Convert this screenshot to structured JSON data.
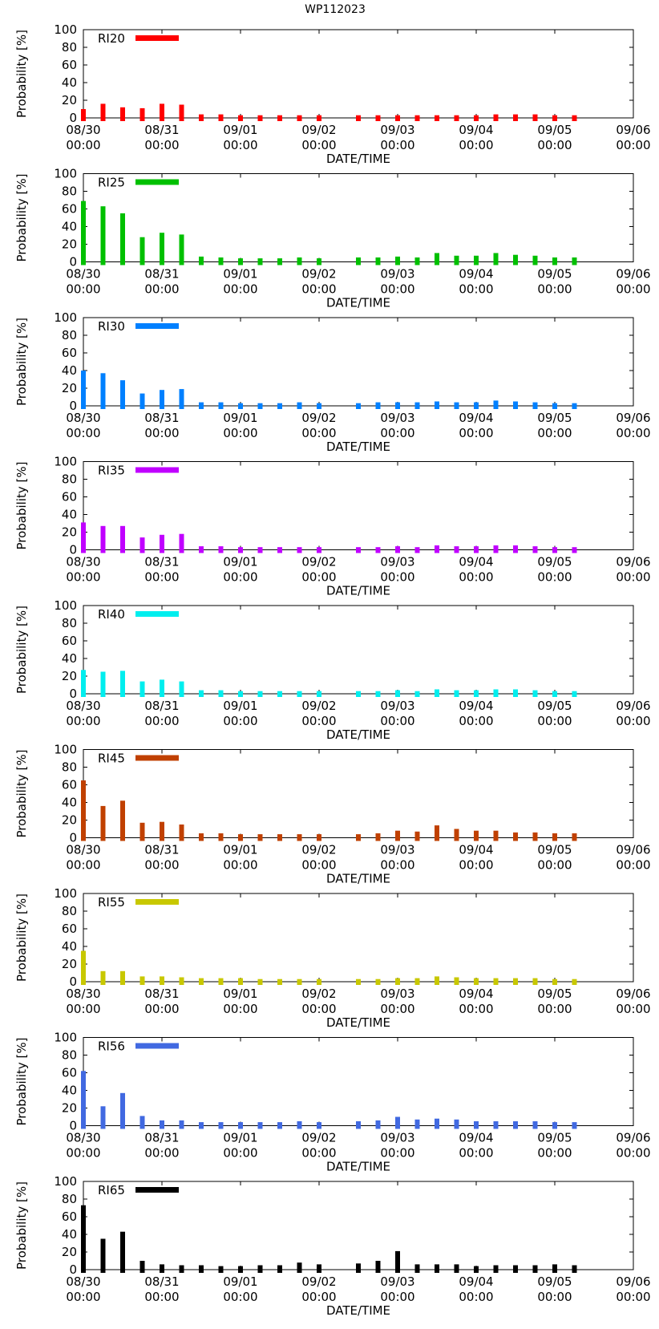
{
  "figure_title": "WP112023",
  "chart_data": [
    {
      "type": "bar",
      "title": "WP112023",
      "legend": "RI20",
      "color": "#ff0000",
      "ylabel": "Probability [%]",
      "xlabel": "DATE/TIME",
      "ylim": [
        0,
        100
      ],
      "yticks": [
        0,
        20,
        40,
        60,
        80,
        100
      ],
      "xticks": [
        "08/30\n00:00",
        "08/31\n00:00",
        "09/01\n00:00",
        "09/02\n00:00",
        "09/03\n00:00",
        "09/04\n00:00",
        "09/05\n00:00",
        "09/06\n00:00"
      ],
      "x_hours": [
        0,
        6,
        12,
        18,
        24,
        30,
        36,
        42,
        48,
        54,
        60,
        66,
        72,
        84,
        90,
        96,
        102,
        108,
        114,
        120,
        126,
        132,
        138,
        144,
        150
      ],
      "values": [
        10,
        16,
        12,
        11,
        16,
        15,
        4,
        4,
        3,
        3,
        3,
        3,
        3,
        3,
        3,
        3,
        3,
        3,
        3,
        3,
        4,
        4,
        4,
        3,
        3
      ]
    },
    {
      "type": "bar",
      "title": "WP112023",
      "legend": "RI25",
      "color": "#00c000",
      "ylabel": "Probability [%]",
      "xlabel": "DATE/TIME",
      "ylim": [
        0,
        100
      ],
      "yticks": [
        0,
        20,
        40,
        60,
        80,
        100
      ],
      "xticks": [
        "08/30\n00:00",
        "08/31\n00:00",
        "09/01\n00:00",
        "09/02\n00:00",
        "09/03\n00:00",
        "09/04\n00:00",
        "09/05\n00:00",
        "09/06\n00:00"
      ],
      "x_hours": [
        0,
        6,
        12,
        18,
        24,
        30,
        36,
        42,
        48,
        54,
        60,
        66,
        72,
        84,
        90,
        96,
        102,
        108,
        114,
        120,
        126,
        132,
        138,
        144,
        150
      ],
      "values": [
        69,
        63,
        55,
        28,
        33,
        31,
        6,
        5,
        4,
        4,
        4,
        5,
        4,
        5,
        5,
        6,
        5,
        10,
        7,
        7,
        10,
        8,
        7,
        5,
        5
      ]
    },
    {
      "type": "bar",
      "title": "WP112023",
      "legend": "RI30",
      "color": "#0080ff",
      "ylabel": "Probability [%]",
      "xlabel": "DATE/TIME",
      "ylim": [
        0,
        100
      ],
      "yticks": [
        0,
        20,
        40,
        60,
        80,
        100
      ],
      "xticks": [
        "08/30\n00:00",
        "08/31\n00:00",
        "09/01\n00:00",
        "09/02\n00:00",
        "09/03\n00:00",
        "09/04\n00:00",
        "09/05\n00:00",
        "09/06\n00:00"
      ],
      "x_hours": [
        0,
        6,
        12,
        18,
        24,
        30,
        36,
        42,
        48,
        54,
        60,
        66,
        72,
        84,
        90,
        96,
        102,
        108,
        114,
        120,
        126,
        132,
        138,
        144,
        150
      ],
      "values": [
        40,
        37,
        29,
        14,
        18,
        19,
        4,
        4,
        3,
        3,
        3,
        4,
        3,
        3,
        4,
        4,
        4,
        5,
        4,
        4,
        6,
        5,
        4,
        3,
        3
      ]
    },
    {
      "type": "bar",
      "title": "WP112023",
      "legend": "RI35",
      "color": "#c000ff",
      "ylabel": "Probability [%]",
      "xlabel": "DATE/TIME",
      "ylim": [
        0,
        100
      ],
      "yticks": [
        0,
        20,
        40,
        60,
        80,
        100
      ],
      "xticks": [
        "08/30\n00:00",
        "08/31\n00:00",
        "09/01\n00:00",
        "09/02\n00:00",
        "09/03\n00:00",
        "09/04\n00:00",
        "09/05\n00:00",
        "09/06\n00:00"
      ],
      "x_hours": [
        0,
        6,
        12,
        18,
        24,
        30,
        36,
        42,
        48,
        54,
        60,
        66,
        72,
        84,
        90,
        96,
        102,
        108,
        114,
        120,
        126,
        132,
        138,
        144,
        150
      ],
      "values": [
        31,
        27,
        27,
        14,
        17,
        18,
        4,
        4,
        3,
        3,
        3,
        3,
        3,
        3,
        3,
        4,
        3,
        5,
        4,
        4,
        5,
        5,
        4,
        3,
        3
      ]
    },
    {
      "type": "bar",
      "title": "WP112023",
      "legend": "RI40",
      "color": "#00eeee",
      "ylabel": "Probability [%]",
      "xlabel": "DATE/TIME",
      "ylim": [
        0,
        100
      ],
      "yticks": [
        0,
        20,
        40,
        60,
        80,
        100
      ],
      "xticks": [
        "08/30\n00:00",
        "08/31\n00:00",
        "09/01\n00:00",
        "09/02\n00:00",
        "09/03\n00:00",
        "09/04\n00:00",
        "09/05\n00:00",
        "09/06\n00:00"
      ],
      "x_hours": [
        0,
        6,
        12,
        18,
        24,
        30,
        36,
        42,
        48,
        54,
        60,
        66,
        72,
        84,
        90,
        96,
        102,
        108,
        114,
        120,
        126,
        132,
        138,
        144,
        150
      ],
      "values": [
        27,
        25,
        26,
        14,
        16,
        14,
        4,
        4,
        3,
        3,
        3,
        3,
        3,
        3,
        3,
        4,
        3,
        5,
        4,
        4,
        5,
        5,
        4,
        3,
        3
      ]
    },
    {
      "type": "bar",
      "title": "WP112023",
      "legend": "RI45",
      "color": "#c04000",
      "ylabel": "Probability [%]",
      "xlabel": "DATE/TIME",
      "ylim": [
        0,
        100
      ],
      "yticks": [
        0,
        20,
        40,
        60,
        80,
        100
      ],
      "xticks": [
        "08/30\n00:00",
        "08/31\n00:00",
        "09/01\n00:00",
        "09/02\n00:00",
        "09/03\n00:00",
        "09/04\n00:00",
        "09/05\n00:00",
        "09/06\n00:00"
      ],
      "x_hours": [
        0,
        6,
        12,
        18,
        24,
        30,
        36,
        42,
        48,
        54,
        60,
        66,
        72,
        84,
        90,
        96,
        102,
        108,
        114,
        120,
        126,
        132,
        138,
        144,
        150
      ],
      "values": [
        65,
        36,
        42,
        17,
        18,
        15,
        5,
        5,
        4,
        4,
        4,
        4,
        4,
        4,
        5,
        8,
        7,
        14,
        10,
        8,
        8,
        6,
        6,
        5,
        5
      ]
    },
    {
      "type": "bar",
      "title": "WP112023",
      "legend": "RI55",
      "color": "#c8c800",
      "ylabel": "Probability [%]",
      "xlabel": "DATE/TIME",
      "ylim": [
        0,
        100
      ],
      "yticks": [
        0,
        20,
        40,
        60,
        80,
        100
      ],
      "xticks": [
        "08/30\n00:00",
        "08/31\n00:00",
        "09/01\n00:00",
        "09/02\n00:00",
        "09/03\n00:00",
        "09/04\n00:00",
        "09/05\n00:00",
        "09/06\n00:00"
      ],
      "x_hours": [
        0,
        6,
        12,
        18,
        24,
        30,
        36,
        42,
        48,
        54,
        60,
        66,
        72,
        84,
        90,
        96,
        102,
        108,
        114,
        120,
        126,
        132,
        138,
        144,
        150
      ],
      "values": [
        35,
        12,
        12,
        6,
        6,
        5,
        4,
        4,
        4,
        3,
        3,
        3,
        3,
        3,
        3,
        4,
        4,
        6,
        5,
        4,
        4,
        4,
        4,
        3,
        3
      ]
    },
    {
      "type": "bar",
      "title": "WP112023",
      "legend": "RI56",
      "color": "#4169e1",
      "ylabel": "Probability [%]",
      "xlabel": "DATE/TIME",
      "ylim": [
        0,
        100
      ],
      "yticks": [
        0,
        20,
        40,
        60,
        80,
        100
      ],
      "xticks": [
        "08/30\n00:00",
        "08/31\n00:00",
        "09/01\n00:00",
        "09/02\n00:00",
        "09/03\n00:00",
        "09/04\n00:00",
        "09/05\n00:00",
        "09/06\n00:00"
      ],
      "x_hours": [
        0,
        6,
        12,
        18,
        24,
        30,
        36,
        42,
        48,
        54,
        60,
        66,
        72,
        84,
        90,
        96,
        102,
        108,
        114,
        120,
        126,
        132,
        138,
        144,
        150
      ],
      "values": [
        62,
        22,
        37,
        11,
        6,
        6,
        4,
        4,
        4,
        4,
        4,
        5,
        4,
        5,
        6,
        10,
        7,
        8,
        7,
        5,
        5,
        5,
        5,
        4,
        4
      ]
    },
    {
      "type": "bar",
      "title": "WP112023",
      "legend": "RI65",
      "color": "#000000",
      "ylabel": "Probability [%]",
      "xlabel": "DATE/TIME",
      "ylim": [
        0,
        100
      ],
      "yticks": [
        0,
        20,
        40,
        60,
        80,
        100
      ],
      "xticks": [
        "08/30\n00:00",
        "08/31\n00:00",
        "09/01\n00:00",
        "09/02\n00:00",
        "09/03\n00:00",
        "09/04\n00:00",
        "09/05\n00:00",
        "09/06\n00:00"
      ],
      "x_hours": [
        0,
        6,
        12,
        18,
        24,
        30,
        36,
        42,
        48,
        54,
        60,
        66,
        72,
        84,
        90,
        96,
        102,
        108,
        114,
        120,
        126,
        132,
        138,
        144,
        150
      ],
      "values": [
        73,
        35,
        43,
        10,
        6,
        5,
        5,
        4,
        4,
        5,
        5,
        8,
        6,
        7,
        10,
        21,
        6,
        6,
        6,
        4,
        5,
        5,
        5,
        6,
        5
      ]
    }
  ]
}
